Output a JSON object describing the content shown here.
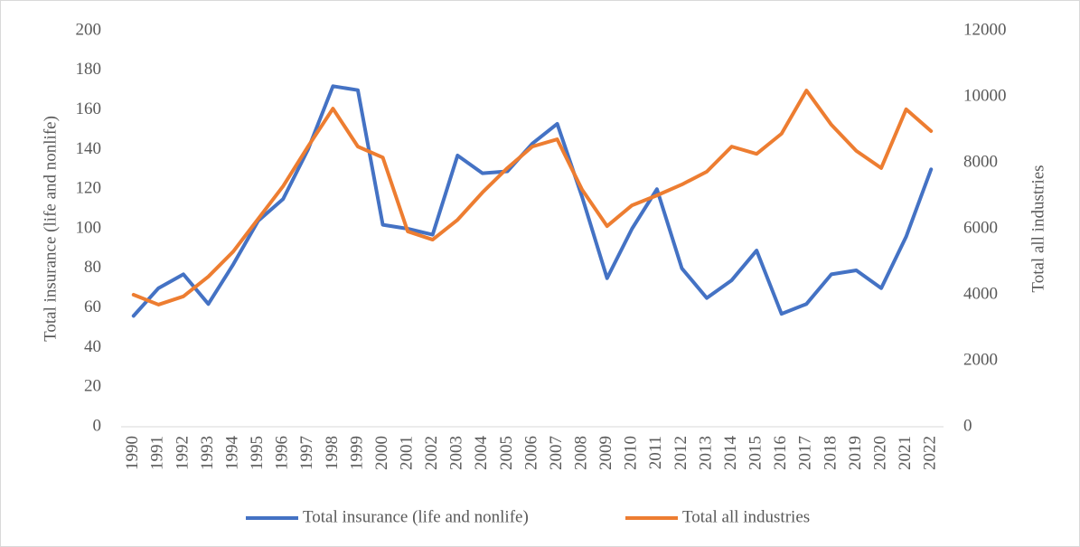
{
  "chart_data": {
    "type": "line",
    "categories": [
      "1990",
      "1991",
      "1992",
      "1993",
      "1994",
      "1995",
      "1996",
      "1997",
      "1998",
      "1999",
      "2000",
      "2001",
      "2002",
      "2003",
      "2004",
      "2005",
      "2006",
      "2007",
      "2008",
      "2009",
      "2010",
      "2011",
      "2012",
      "2013",
      "2014",
      "2015",
      "2016",
      "2017",
      "2018",
      "2019",
      "2020",
      "2021",
      "2022"
    ],
    "series": [
      {
        "name": "Total insurance (life and nonlife)",
        "color": "#4472c4",
        "axis": "y",
        "values": [
          56,
          70,
          77,
          62,
          82,
          104,
          115,
          140,
          172,
          170,
          102,
          100,
          97,
          137,
          128,
          129,
          143,
          153,
          116,
          75,
          100,
          120,
          80,
          65,
          74,
          89,
          57,
          62,
          77,
          79,
          70,
          96,
          130
        ]
      },
      {
        "name": "Total all industries",
        "color": "#ed7d31",
        "axis": "y2",
        "values": [
          4000,
          3700,
          3950,
          4550,
          5310,
          6300,
          7290,
          8490,
          9640,
          8490,
          8160,
          5920,
          5670,
          6270,
          7100,
          7840,
          8490,
          8710,
          7180,
          6080,
          6710,
          7010,
          7340,
          7730,
          8490,
          8270,
          8880,
          10190,
          9150,
          8360,
          7840,
          9620,
          8960
        ]
      }
    ],
    "y_label": "Total insurance (life and nonlife)",
    "y2_label": "Total all industries",
    "ylim": [
      0,
      200
    ],
    "yticks": [
      0,
      20,
      40,
      60,
      80,
      100,
      120,
      140,
      160,
      180,
      200
    ],
    "y2lim": [
      0,
      12000
    ],
    "y2ticks": [
      0,
      2000,
      4000,
      6000,
      8000,
      10000,
      12000
    ],
    "grid": false,
    "legend": "bottom"
  }
}
